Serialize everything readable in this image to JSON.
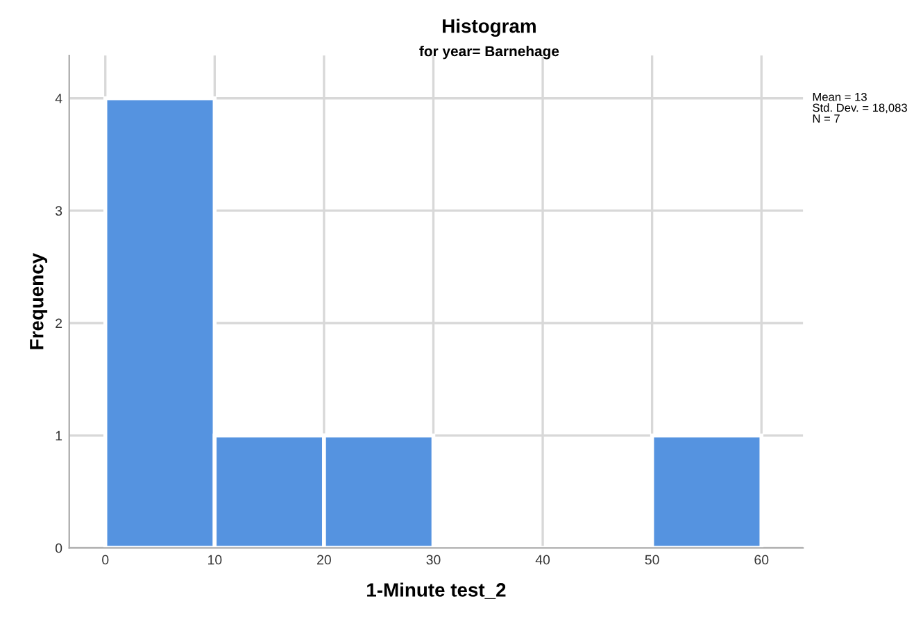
{
  "chart_data": {
    "type": "histogram",
    "title": "Histogram",
    "subtitle": "for year= Barnehage",
    "xlabel": "1-Minute test_2",
    "ylabel": "Frequency",
    "bins": [
      0,
      10,
      20,
      30,
      40,
      50,
      60
    ],
    "values": [
      4,
      1,
      1,
      0,
      0,
      1
    ],
    "color": "#5593e0",
    "xlim": [
      -3.3,
      63.8
    ],
    "ylim": [
      0,
      4.38
    ],
    "xticks": [
      0,
      10,
      20,
      30,
      40,
      50,
      60
    ],
    "yticks": [
      0,
      1,
      2,
      3,
      4
    ],
    "grid": true,
    "annotations": [
      "Mean = 13\nStd. Dev. = 18,083\nN = 7"
    ]
  }
}
